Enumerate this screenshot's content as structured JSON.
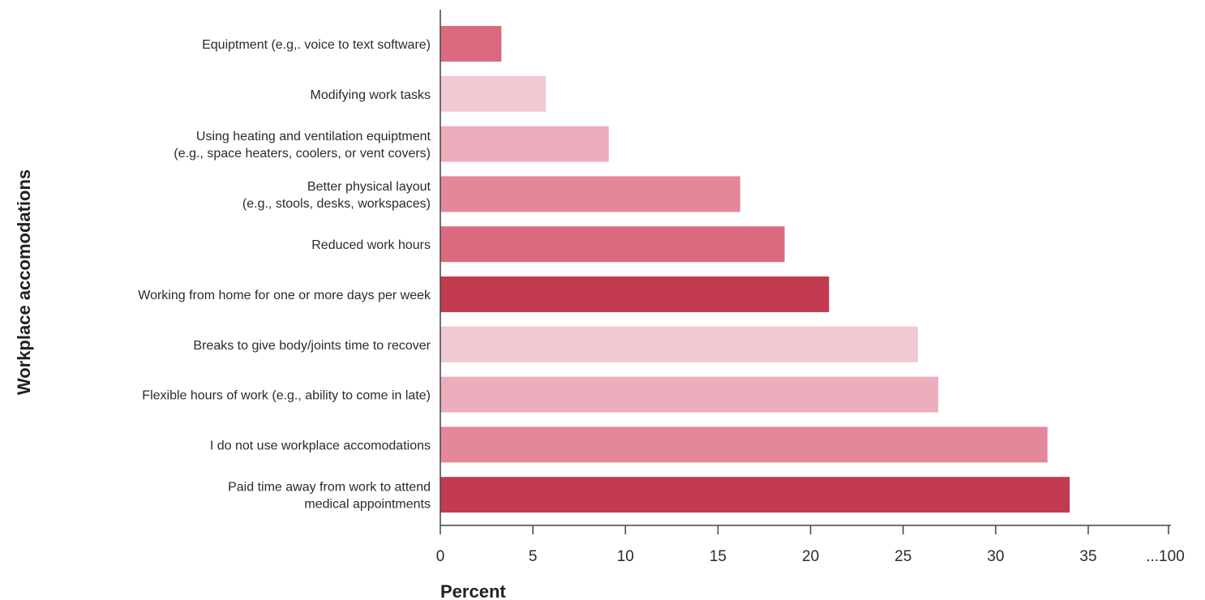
{
  "chart_data": {
    "type": "bar",
    "orientation": "horizontal",
    "ylabel": "Workplace accomodations",
    "xlabel": "Percent",
    "xlim": [
      0,
      35
    ],
    "x_ticks": [
      "0",
      "5",
      "10",
      "15",
      "20",
      "25",
      "30",
      "35",
      "...100"
    ],
    "grid": false,
    "categories": [
      [
        "Equiptment (e.g,. voice to text software)"
      ],
      [
        "Modifying work tasks"
      ],
      [
        "Using heating and ventilation equiptment",
        "(e.g., space heaters, coolers, or vent covers)"
      ],
      [
        "Better physical layout",
        "(e.g., stools, desks, workspaces)"
      ],
      [
        "Reduced work hours"
      ],
      [
        "Working from home for one or more days per week"
      ],
      [
        "Breaks to give body/joints time to recover"
      ],
      [
        "Flexible hours of work (e.g., ability to come in late)"
      ],
      [
        "I do not use workplace accomodations"
      ],
      [
        "Paid time away from work to attend",
        "medical appointments"
      ]
    ],
    "values": [
      3.3,
      5.7,
      9.1,
      16.2,
      18.6,
      21.0,
      25.8,
      26.9,
      32.8,
      34.0
    ],
    "colors": [
      "#dc6a7e",
      "#f2c8d2",
      "#ecaebc",
      "#e48899",
      "#dc6a7e",
      "#c23b50",
      "#f2c8d2",
      "#ecaebc",
      "#e48899",
      "#c23b50"
    ]
  }
}
